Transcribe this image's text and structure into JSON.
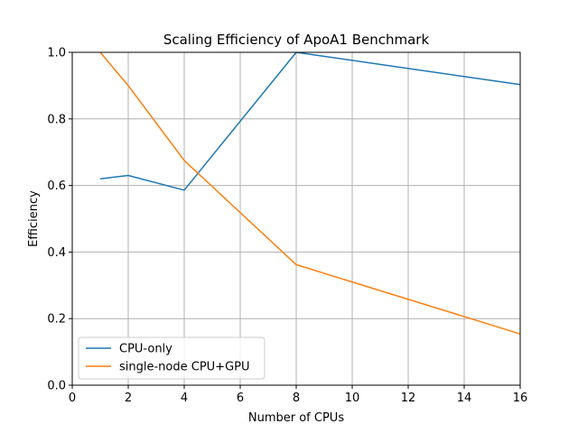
{
  "chart_data": {
    "type": "line",
    "title": "Scaling Efficiency of ApoA1 Benchmark",
    "xlabel": "Number of CPUs",
    "ylabel": "Efficiency",
    "xlim": [
      0,
      16
    ],
    "ylim": [
      0.0,
      1.0
    ],
    "xticks": [
      "0",
      "2",
      "4",
      "6",
      "8",
      "10",
      "12",
      "14",
      "16"
    ],
    "yticks": [
      "0.0",
      "0.2",
      "0.4",
      "0.6",
      "0.8",
      "1.0"
    ],
    "grid": true,
    "legend_position": "lower-left",
    "series": [
      {
        "name": "CPU-only",
        "color": "#1f77b4",
        "x": [
          1,
          2,
          4,
          8,
          16
        ],
        "y": [
          0.62,
          0.63,
          0.586,
          1.0,
          0.903
        ]
      },
      {
        "name": "single-node CPU+GPU",
        "color": "#ff7f0e",
        "x": [
          1,
          2,
          4,
          8,
          16
        ],
        "y": [
          1.0,
          0.9,
          0.675,
          0.362,
          0.154
        ]
      }
    ]
  }
}
